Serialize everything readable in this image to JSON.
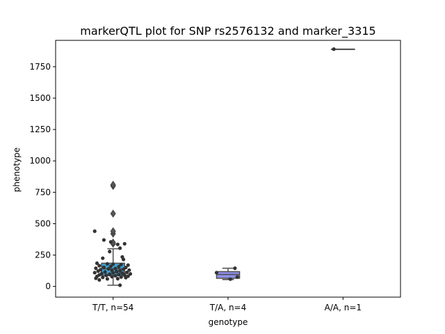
{
  "chart_data": {
    "type": "box",
    "title": "markerQTL plot for SNP rs2576132 and marker_3315",
    "xlabel": "genotype",
    "ylabel": "phenotype",
    "ylim": [
      -85,
      1960
    ],
    "yticks": [
      0,
      250,
      500,
      750,
      1000,
      1250,
      1500,
      1750
    ],
    "grid": false,
    "categories": [
      "T/T, n=54",
      "T/A, n=4",
      "A/A, n=1"
    ],
    "colors": [
      "#3aa3d6",
      "#8f8fe8",
      "#d9d9ff"
    ],
    "point_color": "#333333",
    "boxes": [
      {
        "q1": 85,
        "median": 140,
        "q3": 185,
        "whisker_low": 10,
        "whisker_high": 300,
        "outliers": [
          340,
          350,
          420,
          440,
          580,
          800,
          810
        ]
      },
      {
        "q1": 65,
        "median": 95,
        "q3": 118,
        "whisker_low": 55,
        "whisker_high": 145,
        "outliers": []
      },
      {
        "q1": 1890,
        "median": 1890,
        "q3": 1890,
        "whisker_low": 1890,
        "whisker_high": 1890,
        "outliers": []
      }
    ],
    "points": [
      [
        {
          "dx": -0.16,
          "y": 440
        },
        {
          "dx": -0.08,
          "y": 370
        },
        {
          "dx": -0.02,
          "y": 355
        },
        {
          "dx": 0.04,
          "y": 335
        },
        {
          "dx": 0.1,
          "y": 340
        },
        {
          "dx": 0.06,
          "y": 305
        },
        {
          "dx": -0.03,
          "y": 278
        },
        {
          "dx": 0.08,
          "y": 235
        },
        {
          "dx": -0.09,
          "y": 225
        },
        {
          "dx": 0.09,
          "y": 215
        },
        {
          "dx": -0.14,
          "y": 185
        },
        {
          "dx": -0.05,
          "y": 180
        },
        {
          "dx": 0.0,
          "y": 178
        },
        {
          "dx": 0.07,
          "y": 175
        },
        {
          "dx": 0.13,
          "y": 170
        },
        {
          "dx": -0.12,
          "y": 165
        },
        {
          "dx": -0.02,
          "y": 160
        },
        {
          "dx": 0.05,
          "y": 158
        },
        {
          "dx": -0.08,
          "y": 152
        },
        {
          "dx": 0.11,
          "y": 150
        },
        {
          "dx": -0.15,
          "y": 145
        },
        {
          "dx": 0.02,
          "y": 143
        },
        {
          "dx": -0.04,
          "y": 140
        },
        {
          "dx": 0.09,
          "y": 137
        },
        {
          "dx": -0.11,
          "y": 133
        },
        {
          "dx": 0.14,
          "y": 130
        },
        {
          "dx": -0.01,
          "y": 128
        },
        {
          "dx": 0.06,
          "y": 125
        },
        {
          "dx": -0.13,
          "y": 122
        },
        {
          "dx": 0.03,
          "y": 118
        },
        {
          "dx": -0.07,
          "y": 115
        },
        {
          "dx": 0.12,
          "y": 112
        },
        {
          "dx": -0.16,
          "y": 110
        },
        {
          "dx": 0.0,
          "y": 108
        },
        {
          "dx": 0.08,
          "y": 105
        },
        {
          "dx": -0.1,
          "y": 102
        },
        {
          "dx": 0.15,
          "y": 100
        },
        {
          "dx": -0.03,
          "y": 98
        },
        {
          "dx": 0.05,
          "y": 95
        },
        {
          "dx": -0.12,
          "y": 92
        },
        {
          "dx": 0.1,
          "y": 90
        },
        {
          "dx": -0.06,
          "y": 88
        },
        {
          "dx": 0.02,
          "y": 85
        },
        {
          "dx": 0.13,
          "y": 82
        },
        {
          "dx": -0.14,
          "y": 80
        },
        {
          "dx": -0.01,
          "y": 78
        },
        {
          "dx": 0.07,
          "y": 75
        },
        {
          "dx": -0.09,
          "y": 72
        },
        {
          "dx": 0.11,
          "y": 70
        },
        {
          "dx": -0.15,
          "y": 65
        },
        {
          "dx": 0.04,
          "y": 62
        },
        {
          "dx": -0.05,
          "y": 60
        },
        {
          "dx": -0.12,
          "y": 52
        },
        {
          "dx": 0.06,
          "y": 10
        }
      ],
      [
        {
          "dx": 0.06,
          "y": 145
        },
        {
          "dx": -0.1,
          "y": 110
        },
        {
          "dx": 0.08,
          "y": 75
        },
        {
          "dx": 0.02,
          "y": 58
        }
      ],
      [
        {
          "dx": -0.08,
          "y": 1890
        }
      ]
    ]
  }
}
